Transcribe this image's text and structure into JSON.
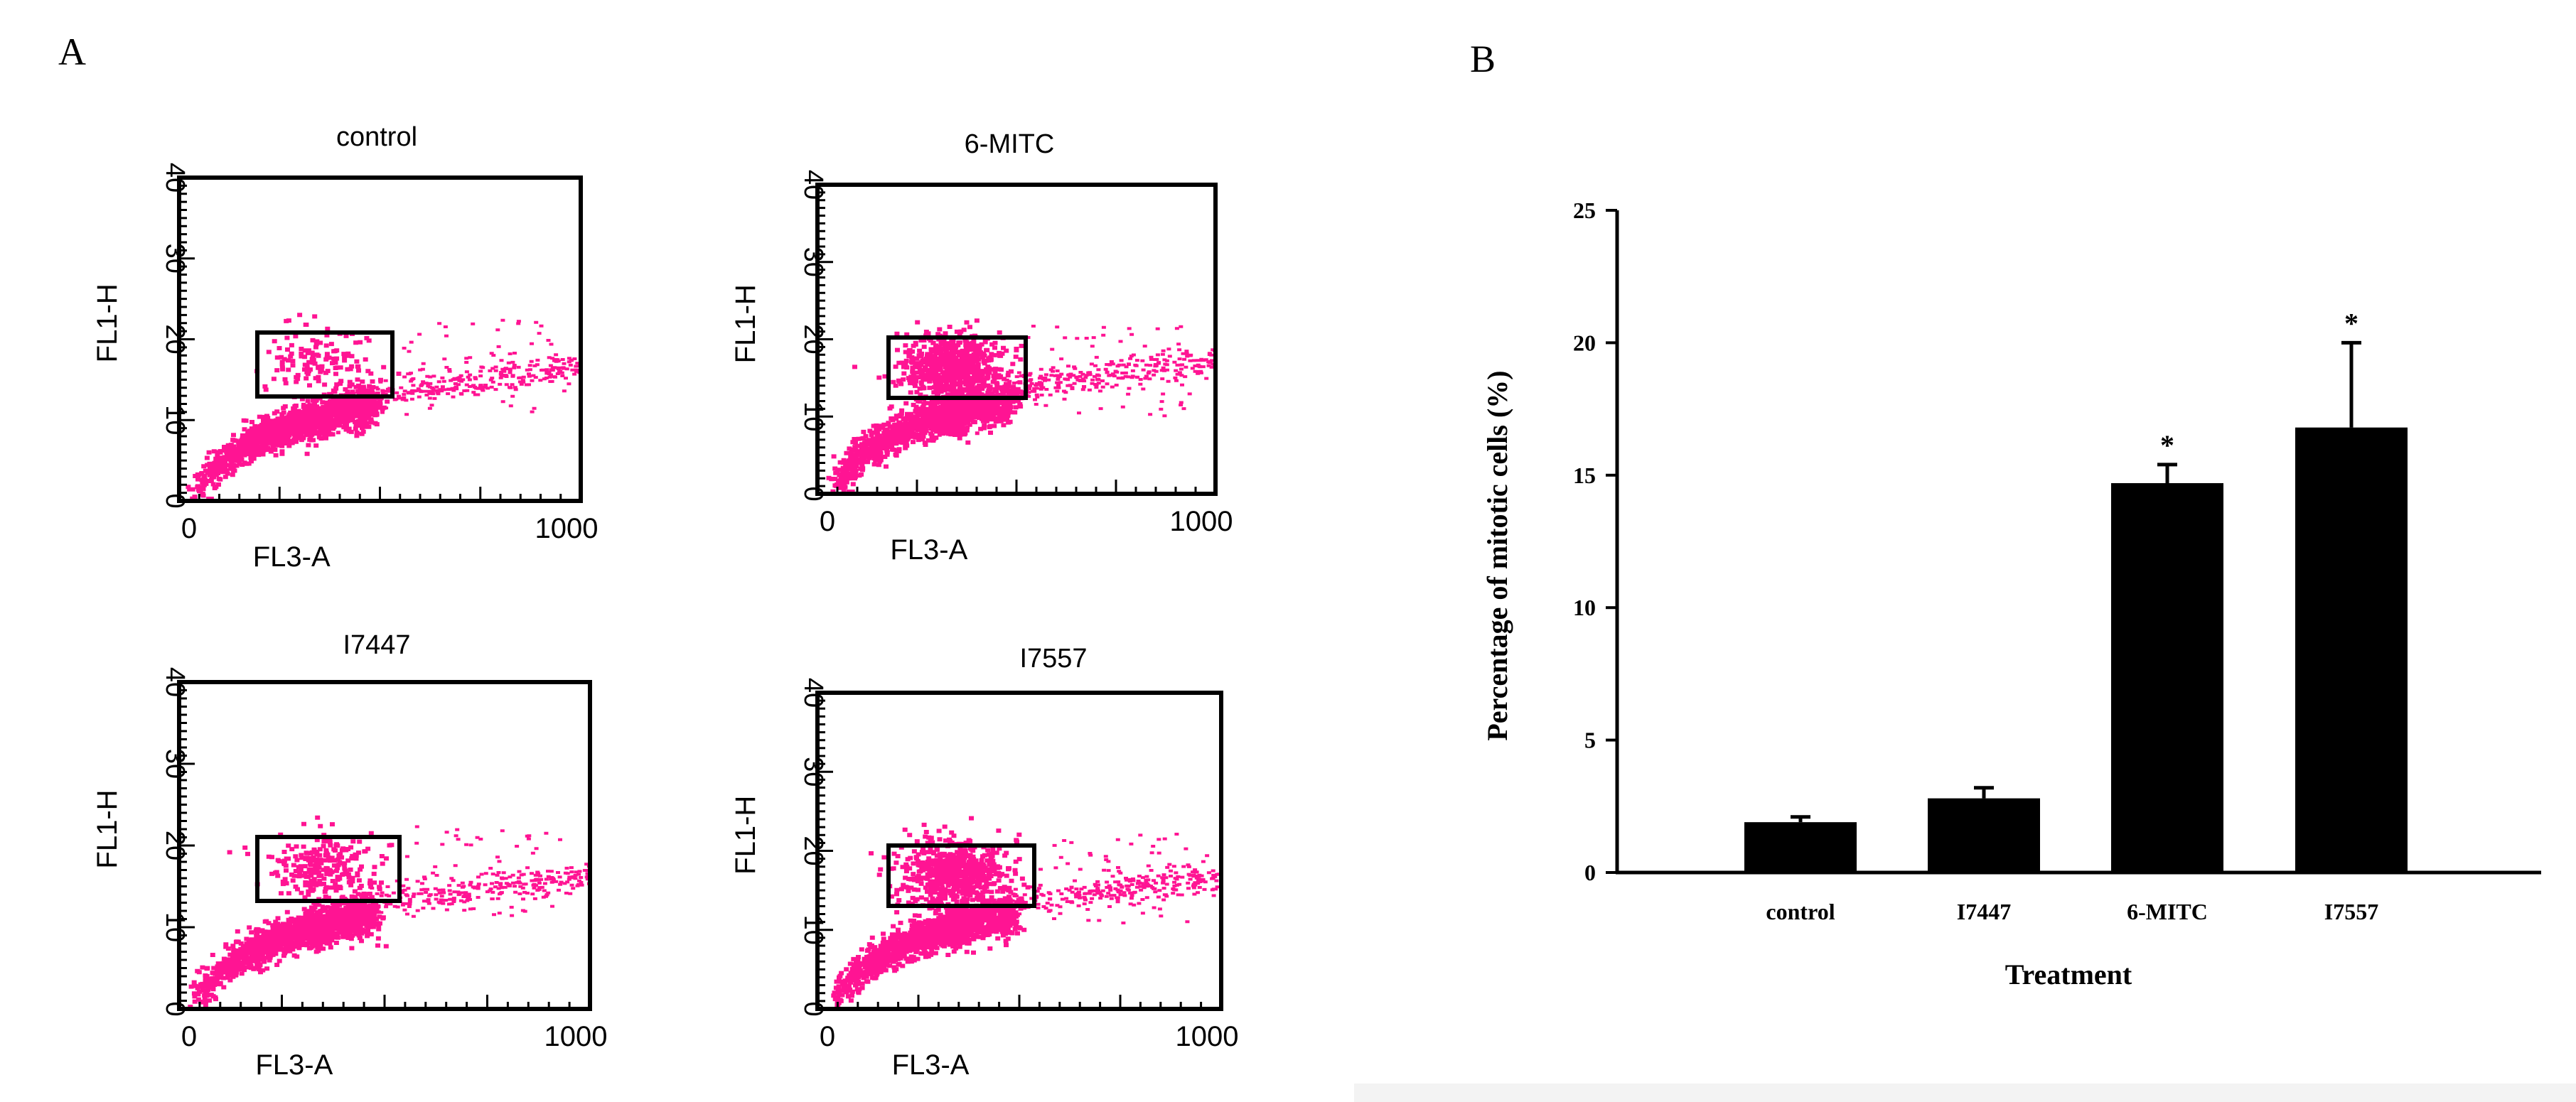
{
  "figure": {
    "panel_a_label": "A",
    "panel_b_label": "B",
    "colors": {
      "dots": "#ff1493",
      "bar": "#000000",
      "axis": "#000000"
    }
  },
  "flow_plots": [
    {
      "title": "control",
      "x_axis_label": "FL3-A",
      "y_axis_label": "FL1-H",
      "x_ticks": [
        "0",
        "1000"
      ],
      "y_ticks": [
        "0",
        "10",
        "20",
        "30",
        "40"
      ],
      "gated_density": "low"
    },
    {
      "title": "6-MITC",
      "x_axis_label": "FL3-A",
      "y_axis_label": "FL1-H",
      "x_ticks": [
        "0",
        "1000"
      ],
      "y_ticks": [
        "0",
        "10",
        "20",
        "30",
        "40"
      ],
      "gated_density": "high"
    },
    {
      "title": "I7447",
      "x_axis_label": "FL3-A",
      "y_axis_label": "FL1-H",
      "x_ticks": [
        "0",
        "1000"
      ],
      "y_ticks": [
        "0",
        "10",
        "20",
        "30",
        "40"
      ],
      "gated_density": "low-medium"
    },
    {
      "title": "I7557",
      "x_axis_label": "FL3-A",
      "y_axis_label": "FL1-H",
      "x_ticks": [
        "0",
        "1000"
      ],
      "y_ticks": [
        "0",
        "10",
        "20",
        "30",
        "40"
      ],
      "gated_density": "high"
    }
  ],
  "chart_data": {
    "type": "bar",
    "title": "",
    "categories": [
      "control",
      "I7447",
      "6-MITC",
      "I7557"
    ],
    "values": [
      1.9,
      2.8,
      14.7,
      16.8
    ],
    "errors": [
      0.2,
      0.4,
      0.7,
      3.2
    ],
    "significance": [
      "",
      "",
      "*",
      "*"
    ],
    "xlabel": "Treatment",
    "ylabel": "Percentage of  mitotic cells (%)",
    "ylim": [
      0,
      25
    ],
    "yticks": [
      0,
      5,
      10,
      15,
      20,
      25
    ],
    "grid": false
  }
}
